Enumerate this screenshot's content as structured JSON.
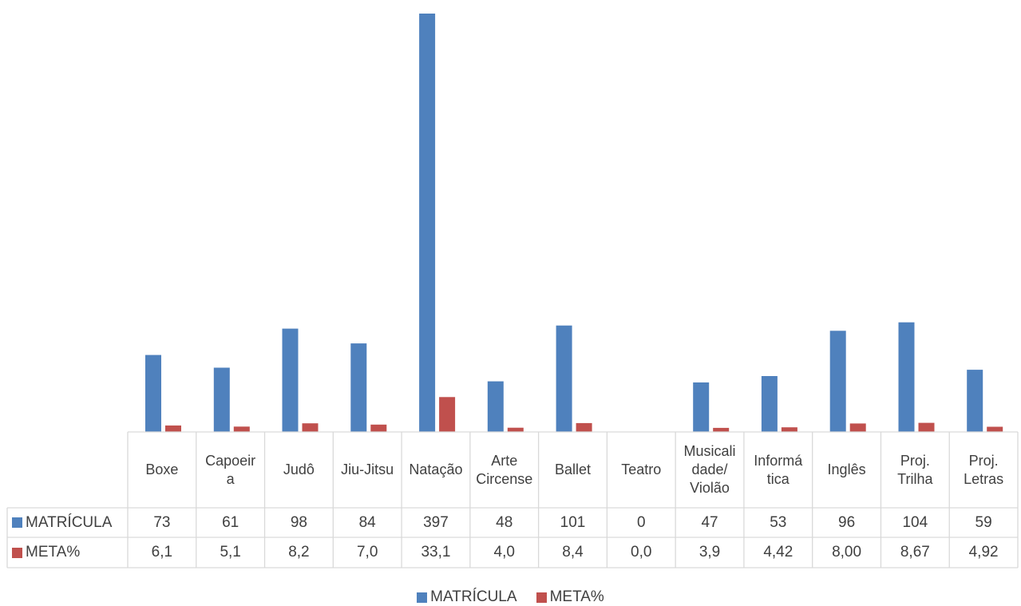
{
  "chart_data": {
    "type": "bar",
    "categories": [
      "Boxe",
      "Capoeira",
      "Judô",
      "Jiu-Jitsu",
      "Natação",
      "Arte Circense",
      "Ballet",
      "Teatro",
      "Musicalidade/ Violão",
      "Informática",
      "Inglês",
      "Proj. Trilha",
      "Proj. Letras"
    ],
    "category_display": [
      "Boxe",
      "Capoeir\na",
      "Judô",
      "Jiu-Jitsu",
      "Natação",
      "Arte\nCircense",
      "Ballet",
      "Teatro",
      "Musicali\ndade/\nViolão",
      "Informá\ntica",
      "Inglês",
      "Proj.\nTrilha",
      "Proj.\nLetras"
    ],
    "series": [
      {
        "name": "MATRÍCULA",
        "color": "#4f81bd",
        "values": [
          73,
          61,
          98,
          84,
          397,
          48,
          101,
          0,
          47,
          53,
          96,
          104,
          59
        ],
        "labels": [
          "73",
          "61",
          "98",
          "84",
          "397",
          "48",
          "101",
          "0",
          "47",
          "53",
          "96",
          "104",
          "59"
        ]
      },
      {
        "name": "META%",
        "color": "#c0504d",
        "values": [
          6.1,
          5.1,
          8.2,
          7.0,
          33.1,
          4.0,
          8.4,
          0.0,
          3.9,
          4.42,
          8.0,
          8.67,
          4.92
        ],
        "labels": [
          "6,1",
          "5,1",
          "8,2",
          "7,0",
          "33,1",
          "4,0",
          "8,4",
          "0,0",
          "3,9",
          "4,42",
          "8,00",
          "8,67",
          "4,92"
        ]
      }
    ],
    "ylim": [
      0,
      400
    ],
    "grid": false,
    "legend_position": "bottom",
    "data_table": true
  }
}
